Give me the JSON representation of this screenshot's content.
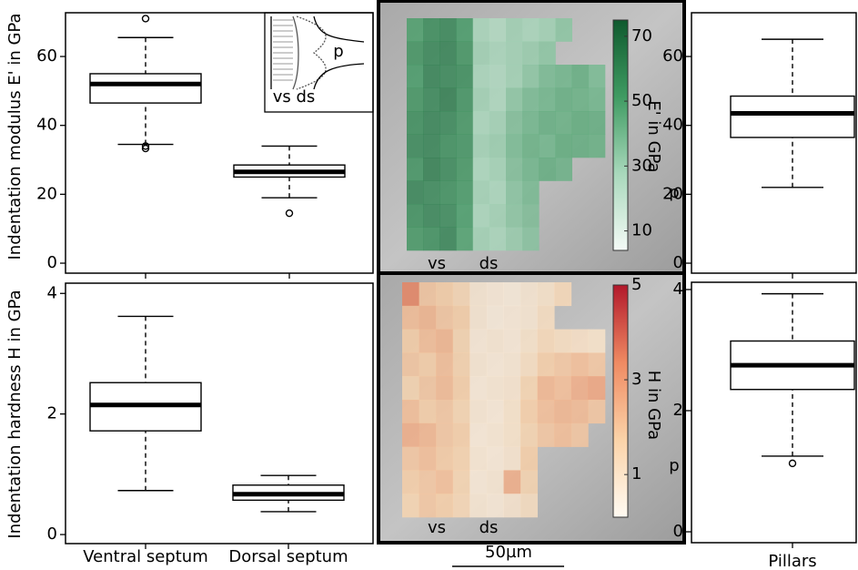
{
  "chart_data": [
    {
      "type": "box",
      "y_label": "Indentation modulus E' in GPa",
      "boxes": [
        {
          "whislo": 34.5,
          "q1": 46.5,
          "med": 52,
          "q3": 55,
          "whishi": 65.5,
          "fliers": [
            71,
            34,
            33.3
          ]
        },
        {
          "whislo": 19,
          "q1": 25,
          "med": 26.5,
          "q3": 28.5,
          "whishi": 34,
          "fliers": [
            14.5
          ]
        }
      ],
      "ylim": [
        -2.9,
        72.7
      ],
      "yticks": [
        0,
        20,
        40,
        60
      ],
      "annotations": [
        "vs ds",
        "p"
      ]
    },
    {
      "type": "box",
      "y_label": "Indentation hardness H in GPa",
      "categories": [
        "Ventral septum",
        "Dorsal septum"
      ],
      "boxes": [
        {
          "whislo": 0.73,
          "q1": 1.72,
          "med": 2.15,
          "q3": 2.52,
          "whishi": 3.62,
          "fliers": []
        },
        {
          "whislo": 0.38,
          "q1": 0.57,
          "med": 0.67,
          "q3": 0.82,
          "whishi": 0.98,
          "fliers": []
        }
      ],
      "ylim": [
        -0.15,
        4.17
      ],
      "yticks": [
        0,
        2,
        4
      ]
    },
    {
      "type": "heatmap",
      "colorbar_label": "E' in GPa",
      "labels": [
        "vs",
        "ds",
        "p"
      ],
      "colormap": [
        "#f4faf6",
        "#a8d8bb",
        "#3f9b62",
        "#0f5a2e"
      ],
      "clim": [
        4,
        75
      ],
      "colorbar_ticks": [
        10,
        30,
        50,
        70
      ],
      "z": [
        [
          50,
          58,
          60,
          52,
          28,
          25,
          30,
          28,
          30,
          35,
          null,
          null
        ],
        [
          55,
          60,
          62,
          55,
          30,
          28,
          30,
          32,
          35,
          null,
          null,
          null
        ],
        [
          52,
          62,
          60,
          58,
          28,
          26,
          30,
          35,
          40,
          42,
          45,
          40
        ],
        [
          55,
          60,
          64,
          56,
          30,
          27,
          35,
          40,
          42,
          45,
          44,
          42
        ],
        [
          58,
          62,
          60,
          55,
          28,
          30,
          38,
          42,
          45,
          44,
          46,
          45
        ],
        [
          60,
          62,
          58,
          56,
          30,
          32,
          40,
          44,
          42,
          46,
          45,
          44
        ],
        [
          56,
          64,
          60,
          55,
          28,
          30,
          38,
          42,
          45,
          43,
          null,
          null
        ],
        [
          62,
          60,
          58,
          54,
          30,
          28,
          36,
          40,
          null,
          null,
          null,
          null
        ],
        [
          58,
          62,
          60,
          52,
          28,
          30,
          35,
          38,
          null,
          null,
          null,
          null
        ],
        [
          55,
          58,
          62,
          50,
          30,
          28,
          32,
          36,
          null,
          null,
          null,
          null
        ]
      ]
    },
    {
      "type": "heatmap",
      "colorbar_label": "H in GPa",
      "labels": [
        "vs",
        "ds",
        "p"
      ],
      "scale_bar": "50µm",
      "colormap": [
        "#fffaf2",
        "#fbd3a8",
        "#ef8a62",
        "#b2182b"
      ],
      "clim": [
        0.1,
        5
      ],
      "colorbar_ticks": [
        1,
        3,
        5
      ],
      "z": [
        [
          3.5,
          2,
          1.8,
          1.5,
          0.8,
          0.7,
          0.6,
          0.8,
          1.0,
          1.4,
          null,
          null
        ],
        [
          2.2,
          2.4,
          2.0,
          1.8,
          0.8,
          0.6,
          0.7,
          0.8,
          1.2,
          null,
          null,
          null
        ],
        [
          1.8,
          2.2,
          2.4,
          1.6,
          0.7,
          0.8,
          0.7,
          1.0,
          1.4,
          1.2,
          1.1,
          1.0
        ],
        [
          2.0,
          1.8,
          2.2,
          1.7,
          0.8,
          0.7,
          0.8,
          1.2,
          1.8,
          2.0,
          2.2,
          2.0
        ],
        [
          1.6,
          2.0,
          2.3,
          1.8,
          0.7,
          0.8,
          0.9,
          1.6,
          2.4,
          2.2,
          2.6,
          2.8
        ],
        [
          2.2,
          1.8,
          2.0,
          1.6,
          0.8,
          0.7,
          1.0,
          1.8,
          2.2,
          2.4,
          2.3,
          2.0
        ],
        [
          2.6,
          2.4,
          2.0,
          1.8,
          0.7,
          0.8,
          1.0,
          1.6,
          2.0,
          2.2,
          2.0,
          null
        ],
        [
          2.0,
          2.2,
          1.9,
          1.7,
          0.8,
          0.7,
          0.9,
          1.8,
          null,
          null,
          null,
          null
        ],
        [
          1.8,
          2.0,
          2.2,
          1.6,
          0.7,
          0.8,
          2.6,
          1.6,
          null,
          null,
          null,
          null
        ],
        [
          1.6,
          2.0,
          1.8,
          1.5,
          0.8,
          0.7,
          0.9,
          1.2,
          null,
          null,
          null,
          null
        ]
      ]
    },
    {
      "type": "box",
      "boxes": [
        {
          "whislo": 22,
          "q1": 36.5,
          "med": 43.5,
          "q3": 48.5,
          "whishi": 65,
          "fliers": []
        }
      ],
      "ylim": [
        -2.9,
        72.7
      ],
      "yticks": [
        0,
        20,
        40,
        60
      ]
    },
    {
      "type": "box",
      "categories": [
        "Pillars"
      ],
      "boxes": [
        {
          "whislo": 1.25,
          "q1": 2.35,
          "med": 2.75,
          "q3": 3.15,
          "whishi": 3.93,
          "fliers": [
            1.13
          ]
        }
      ],
      "ylim": [
        -0.18,
        4.12
      ],
      "yticks": [
        0,
        2,
        4
      ]
    }
  ]
}
